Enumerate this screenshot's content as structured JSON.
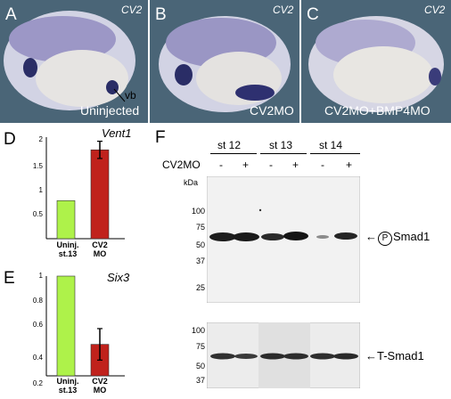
{
  "panels_top": [
    {
      "letter": "A",
      "gene": "CV2",
      "caption": "Uninjected",
      "annotation": "vb"
    },
    {
      "letter": "B",
      "gene": "CV2",
      "caption": "CV2MO"
    },
    {
      "letter": "C",
      "gene": "CV2",
      "caption": "CV2MO+BMP4MO"
    }
  ],
  "panel_d": {
    "letter": "D",
    "gene": "Vent1",
    "ticks": [
      "2",
      "1.5",
      "1",
      "0.5"
    ],
    "categories": [
      [
        "Uninj.",
        "st.13"
      ],
      [
        "CV2",
        "MO"
      ]
    ]
  },
  "panel_e": {
    "letter": "E",
    "gene": "Six3",
    "ticks": [
      "1",
      "0.8",
      "0.6",
      "0.4",
      "0.2"
    ],
    "categories": [
      [
        "Uninj.",
        "st.13"
      ],
      [
        "CV2",
        "MO"
      ]
    ]
  },
  "chart_data": [
    {
      "type": "bar",
      "title": "Vent1",
      "categories": [
        "Uninj. st.13",
        "CV2 MO"
      ],
      "values": [
        1.0,
        2.0
      ],
      "errors": [
        0,
        0.17
      ],
      "ylim": [
        0.25,
        2.25
      ],
      "colors": [
        "#aef24a",
        "#c0221c"
      ]
    },
    {
      "type": "bar",
      "title": "Six3",
      "categories": [
        "Uninj. st.13",
        "CV2 MO"
      ],
      "values": [
        1.0,
        0.35
      ],
      "errors": [
        0,
        0.15
      ],
      "ylim": [
        0.05,
        1.0
      ],
      "colors": [
        "#aef24a",
        "#c0221c"
      ]
    }
  ],
  "panel_f": {
    "letter": "F",
    "stages": [
      "st 12",
      "st 13",
      "st 14"
    ],
    "row_label": "CV2MO",
    "signs": [
      "-",
      "+",
      "-",
      "+",
      "-",
      "+"
    ],
    "kda": "kDa",
    "mw_top": [
      "100",
      "75",
      "50",
      "37",
      "25"
    ],
    "mw_bottom": [
      "100",
      "75",
      "50",
      "37"
    ],
    "band_top": "Smad1",
    "phospho": "P",
    "band_bottom": "T-Smad1",
    "arrow": "←"
  }
}
